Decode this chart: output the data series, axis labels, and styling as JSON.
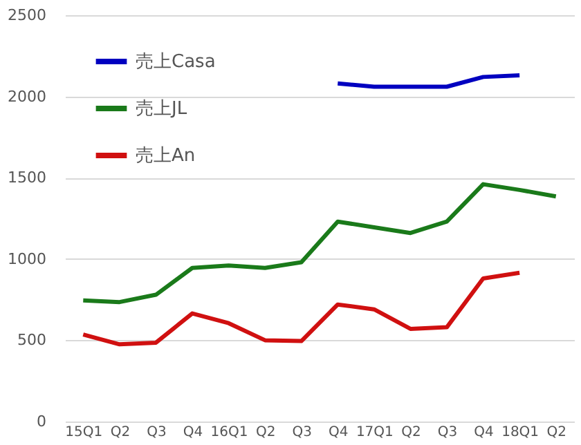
{
  "chart_data": {
    "type": "line",
    "categories": [
      "15Q1",
      "Q2",
      "Q3",
      "Q4",
      "16Q1",
      "Q2",
      "Q3",
      "Q4",
      "17Q1",
      "Q2",
      "Q3",
      "Q4",
      "18Q1",
      "Q2"
    ],
    "series": [
      {
        "name": "売上Casa",
        "color": "#0000c0",
        "values": [
          null,
          null,
          null,
          null,
          null,
          null,
          null,
          2080,
          2060,
          2060,
          2060,
          2120,
          2130,
          null
        ]
      },
      {
        "name": "売上JL",
        "color": "#1a7a1a",
        "values": [
          745,
          735,
          780,
          945,
          960,
          945,
          980,
          1230,
          1195,
          1160,
          1230,
          1460,
          1425,
          1385
        ]
      },
      {
        "name": "売上An",
        "color": "#d01010",
        "values": [
          535,
          475,
          485,
          665,
          605,
          500,
          495,
          720,
          690,
          570,
          580,
          880,
          915,
          null
        ]
      }
    ],
    "ylim": [
      0,
      2500
    ],
    "yticks": [
      0,
      500,
      1000,
      1500,
      2000,
      2500
    ],
    "grid": "y",
    "legend": "top left",
    "marker": "none",
    "line_style": "solid"
  }
}
